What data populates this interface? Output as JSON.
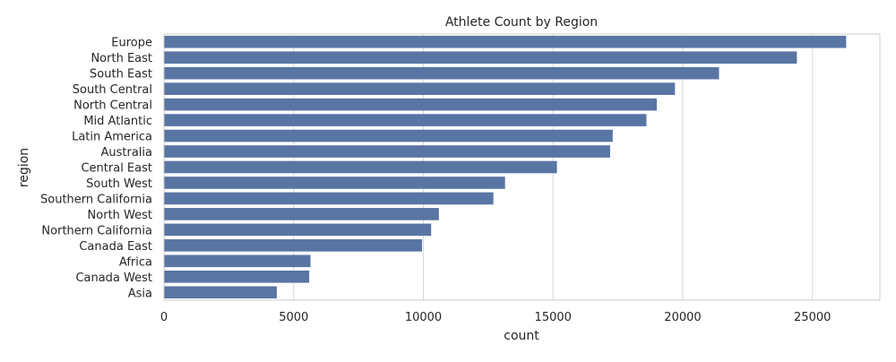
{
  "chart_data": {
    "type": "bar",
    "orientation": "horizontal",
    "title": "Athlete Count by Region",
    "xlabel": "count",
    "ylabel": "region",
    "categories": [
      "Europe",
      "North East",
      "South East",
      "South Central",
      "North Central",
      "Mid Atlantic",
      "Latin America",
      "Australia",
      "Central East",
      "South West",
      "Southern California",
      "North West",
      "Northern California",
      "Canada East",
      "Africa",
      "Canada West",
      "Asia"
    ],
    "values": [
      26300,
      24400,
      21400,
      19700,
      19000,
      18600,
      17300,
      17200,
      15150,
      13150,
      12700,
      10600,
      10300,
      9950,
      5650,
      5600,
      4350
    ],
    "xlim": [
      0,
      27600
    ],
    "xticks": [
      0,
      5000,
      10000,
      15000,
      20000,
      25000
    ],
    "grid": true,
    "colors": {
      "bar": "#5975a4",
      "grid": "#d9d9d9",
      "axis": "#cccccc",
      "text": "#262626"
    }
  }
}
